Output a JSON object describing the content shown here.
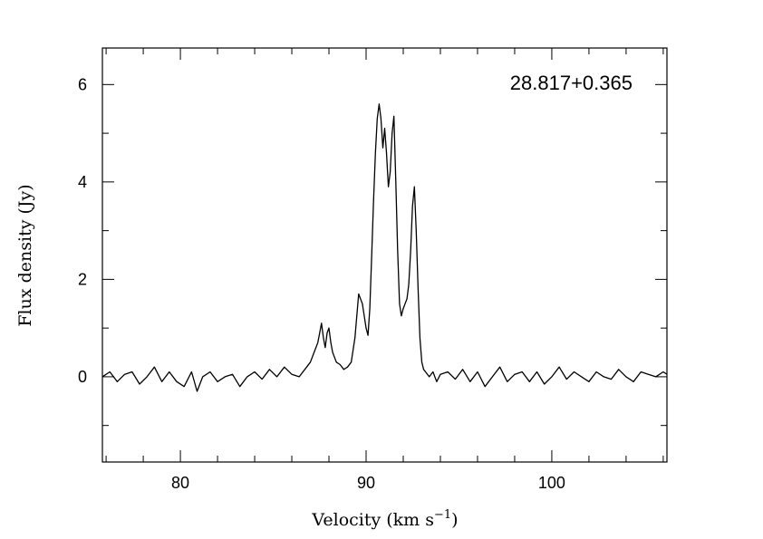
{
  "chart_data": {
    "type": "line",
    "title": "",
    "annotation": "28.817+0.365",
    "xlabel": "Velocity (km s",
    "xlabel_sup": "−1",
    "xlabel_tail": ")",
    "ylabel": "Flux density (Jy)",
    "xlim": [
      75.8,
      106.2
    ],
    "ylim": [
      -1.75,
      6.75
    ],
    "x_major_ticks": [
      80,
      90,
      100
    ],
    "x_tick_labels": [
      "80",
      "90",
      "100"
    ],
    "x_minor_ticks": [
      76,
      78,
      82,
      84,
      86,
      88,
      92,
      94,
      96,
      98,
      102,
      104,
      106
    ],
    "y_major_ticks": [
      0,
      2,
      4,
      6
    ],
    "y_tick_labels": [
      "0",
      "2",
      "4",
      "6"
    ],
    "y_minor_ticks": [
      -1,
      1,
      3,
      5
    ],
    "grid": false,
    "legend": "none",
    "line_color": "#000000",
    "series": [
      {
        "x": [
          75.8,
          76.2,
          76.6,
          77.0,
          77.4,
          77.8,
          78.2,
          78.6,
          79.0,
          79.4,
          79.8,
          80.2,
          80.6,
          80.9,
          81.2,
          81.6,
          82.0,
          82.4,
          82.8,
          83.2,
          83.6,
          84.0,
          84.4,
          84.8,
          85.2,
          85.6,
          86.0,
          86.4,
          86.8,
          87.0,
          87.2,
          87.4,
          87.5,
          87.6,
          87.7,
          87.8,
          87.9,
          88.0,
          88.1,
          88.2,
          88.4,
          88.6,
          88.8,
          89.0,
          89.2,
          89.4,
          89.6,
          89.8,
          90.0,
          90.1,
          90.2,
          90.3,
          90.4,
          90.5,
          90.6,
          90.7,
          90.8,
          90.9,
          91.0,
          91.1,
          91.2,
          91.3,
          91.4,
          91.5,
          91.6,
          91.7,
          91.8,
          91.9,
          92.0,
          92.1,
          92.2,
          92.3,
          92.4,
          92.5,
          92.6,
          92.7,
          92.8,
          92.9,
          93.0,
          93.1,
          93.2,
          93.4,
          93.6,
          93.8,
          94.0,
          94.4,
          94.8,
          95.2,
          95.6,
          96.0,
          96.4,
          96.8,
          97.2,
          97.6,
          98.0,
          98.4,
          98.8,
          99.2,
          99.6,
          100.0,
          100.4,
          100.8,
          101.2,
          101.6,
          102.0,
          102.4,
          102.8,
          103.2,
          103.6,
          104.0,
          104.4,
          104.8,
          105.2,
          105.6,
          106.0,
          106.2
        ],
        "y": [
          0.0,
          0.1,
          -0.1,
          0.05,
          0.1,
          -0.15,
          0.0,
          0.2,
          -0.1,
          0.1,
          -0.1,
          -0.2,
          0.1,
          -0.3,
          0.0,
          0.1,
          -0.1,
          0.0,
          0.05,
          -0.2,
          0.0,
          0.1,
          -0.05,
          0.15,
          0.0,
          0.2,
          0.05,
          0.0,
          0.2,
          0.3,
          0.5,
          0.7,
          0.9,
          1.1,
          0.8,
          0.6,
          0.9,
          1.0,
          0.7,
          0.5,
          0.3,
          0.25,
          0.15,
          0.2,
          0.3,
          0.8,
          1.7,
          1.5,
          1.0,
          0.85,
          1.4,
          2.5,
          3.6,
          4.6,
          5.3,
          5.6,
          5.3,
          4.7,
          5.1,
          4.6,
          3.9,
          4.2,
          5.0,
          5.35,
          4.0,
          2.6,
          1.5,
          1.25,
          1.4,
          1.5,
          1.6,
          1.9,
          2.6,
          3.5,
          3.9,
          3.0,
          1.8,
          0.8,
          0.3,
          0.15,
          0.1,
          0.0,
          0.1,
          -0.1,
          0.05,
          0.1,
          -0.05,
          0.15,
          -0.1,
          0.1,
          -0.2,
          0.0,
          0.2,
          -0.1,
          0.05,
          0.1,
          -0.1,
          0.1,
          -0.15,
          0.0,
          0.2,
          -0.05,
          0.1,
          0.0,
          -0.1,
          0.1,
          0.0,
          -0.05,
          0.15,
          0.0,
          -0.1,
          0.1,
          0.05,
          0.0,
          0.1,
          0.05
        ]
      }
    ]
  }
}
